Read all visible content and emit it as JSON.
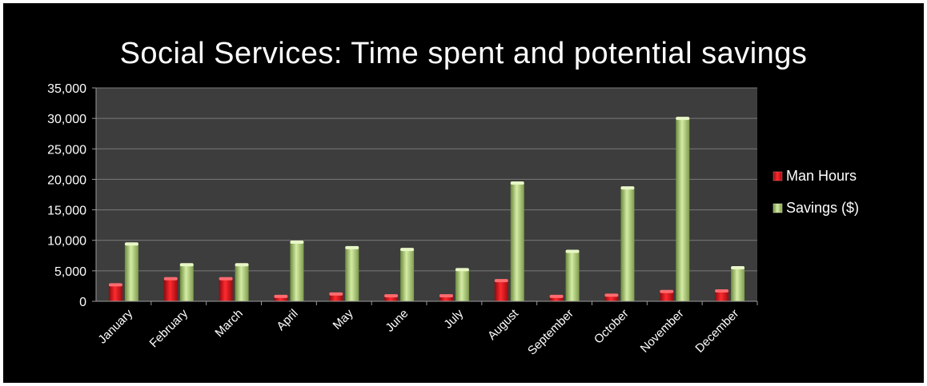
{
  "chart_data": {
    "type": "bar",
    "title": "Social Services: Time spent and potential savings",
    "xlabel": "",
    "ylabel": "",
    "categories": [
      "January",
      "February",
      "March",
      "April",
      "May",
      "June",
      "July",
      "August",
      "September",
      "October",
      "November",
      "December"
    ],
    "series": [
      {
        "name": "Man Hours",
        "color": "#e8141b",
        "values": [
          2700,
          3700,
          3700,
          800,
          1200,
          900,
          900,
          3400,
          800,
          1000,
          1600,
          1700
        ]
      },
      {
        "name": "Savings ($)",
        "color": "#a8c870",
        "values": [
          9400,
          6000,
          6000,
          9700,
          8800,
          8500,
          5200,
          19400,
          8200,
          18600,
          30000,
          5500
        ]
      }
    ],
    "ylim": [
      0,
      35000
    ],
    "yticks": [
      "0",
      "5,000",
      "10,000",
      "15,000",
      "20,000",
      "25,000",
      "30,000",
      "35,000"
    ],
    "grid": true,
    "legend": "right",
    "plot_background": "#3d3d3d"
  }
}
